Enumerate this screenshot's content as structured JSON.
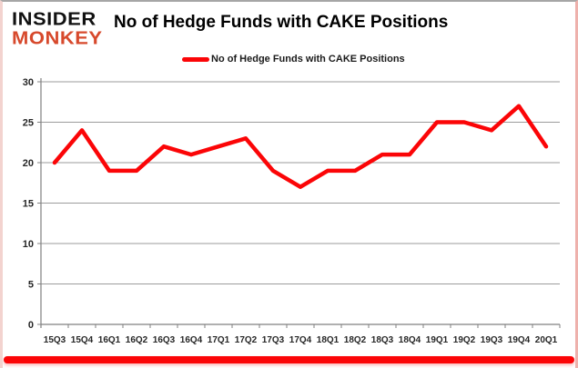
{
  "logo": {
    "line1": "INSIDER",
    "line2": "MONKEY"
  },
  "title": "No of Hedge Funds with CAKE Positions",
  "legend": {
    "label": "No of Hedge Funds with CAKE Positions"
  },
  "colors": {
    "line": "#fb0507",
    "logo_red": "#d7492c",
    "accent_bar": "#fb0507",
    "grid": "#9b9b9b",
    "axis": "#808080",
    "tick_label": "#262626"
  },
  "chart_data": {
    "type": "line",
    "title": "No of Hedge Funds with CAKE Positions",
    "series": [
      {
        "name": "No of Hedge Funds with CAKE Positions",
        "values": [
          20,
          24,
          19,
          19,
          22,
          21,
          22,
          23,
          19,
          17,
          19,
          19,
          21,
          21,
          25,
          25,
          24,
          27,
          22
        ]
      }
    ],
    "categories": [
      "15Q3",
      "15Q4",
      "16Q1",
      "16Q2",
      "16Q3",
      "16Q4",
      "17Q1",
      "17Q2",
      "17Q3",
      "17Q4",
      "18Q1",
      "18Q2",
      "18Q3",
      "18Q4",
      "19Q1",
      "19Q2",
      "19Q3",
      "19Q4",
      "20Q1"
    ],
    "xlabel": "",
    "ylabel": "",
    "ylim": [
      0,
      30
    ],
    "yticks": [
      0,
      5,
      10,
      15,
      20,
      25,
      30
    ],
    "grid": true,
    "legend_position": "top"
  }
}
